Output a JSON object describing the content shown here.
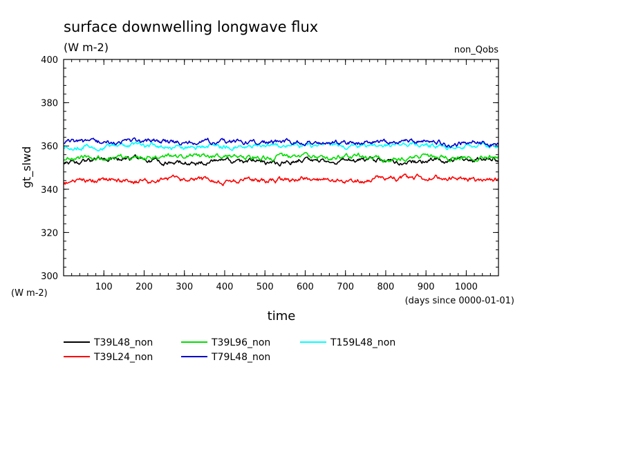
{
  "chart_data": {
    "type": "line",
    "title": "surface downwelling longwave flux",
    "subtitle": "(W m-2)",
    "annotation": "non_Qobs",
    "ylabel": "gt_slwd",
    "yunits": "(W m-2)",
    "xlabel": "time",
    "xunits": "(days since 0000-01-01)",
    "xlim": [
      0,
      1080
    ],
    "ylim": [
      300,
      400
    ],
    "x_ticks": [
      100,
      200,
      300,
      400,
      500,
      600,
      700,
      800,
      900,
      1000
    ],
    "y_ticks": [
      300,
      320,
      340,
      360,
      380,
      400
    ],
    "grid": false,
    "legend_position": "bottom-left",
    "series": [
      {
        "name": "T39L48_non",
        "color": "#000000",
        "x": [
          0,
          60,
          120,
          180,
          240,
          300,
          360,
          420,
          480,
          540,
          600,
          660,
          720,
          780,
          840,
          900,
          960,
          1020,
          1080
        ],
        "y": [
          353,
          353,
          354,
          354,
          353,
          352,
          353,
          352,
          353,
          352,
          354,
          353,
          353,
          354,
          353,
          353,
          354,
          354,
          354
        ]
      },
      {
        "name": "T39L24_non",
        "color": "#ff0000",
        "x": [
          0,
          60,
          120,
          180,
          240,
          300,
          360,
          420,
          480,
          540,
          600,
          660,
          720,
          780,
          840,
          900,
          960,
          1020,
          1080
        ],
        "y": [
          343,
          344,
          344,
          344,
          344,
          344,
          344,
          344,
          344,
          344,
          345,
          344,
          344,
          345,
          345,
          345,
          345,
          344,
          344
        ]
      },
      {
        "name": "T39L96_non",
        "color": "#00dd00",
        "x": [
          0,
          60,
          120,
          180,
          240,
          300,
          360,
          420,
          480,
          540,
          600,
          660,
          720,
          780,
          840,
          900,
          960,
          1020,
          1080
        ],
        "y": [
          354,
          355,
          355,
          355,
          355,
          355,
          355,
          355,
          354,
          355,
          355,
          355,
          355,
          355,
          354,
          355,
          355,
          355,
          355
        ]
      },
      {
        "name": "T79L48_non",
        "color": "#0000cc",
        "x": [
          0,
          60,
          120,
          180,
          240,
          300,
          360,
          420,
          480,
          540,
          600,
          660,
          720,
          780,
          840,
          900,
          960,
          1020,
          1080
        ],
        "y": [
          362,
          361,
          362,
          362,
          362,
          361,
          362,
          362,
          361,
          362,
          362,
          361,
          362,
          362,
          362,
          362,
          361,
          362,
          361
        ]
      },
      {
        "name": "T159L48_non",
        "color": "#00ffff",
        "x": [
          0,
          60,
          120,
          180,
          240,
          300,
          360,
          420,
          480,
          540,
          600,
          660,
          720,
          780,
          840,
          900,
          960,
          1020,
          1080
        ],
        "y": [
          360,
          360,
          360,
          361,
          360,
          360,
          360,
          360,
          360,
          360,
          360,
          360,
          360,
          360,
          360,
          360,
          360,
          360,
          360
        ]
      }
    ]
  }
}
